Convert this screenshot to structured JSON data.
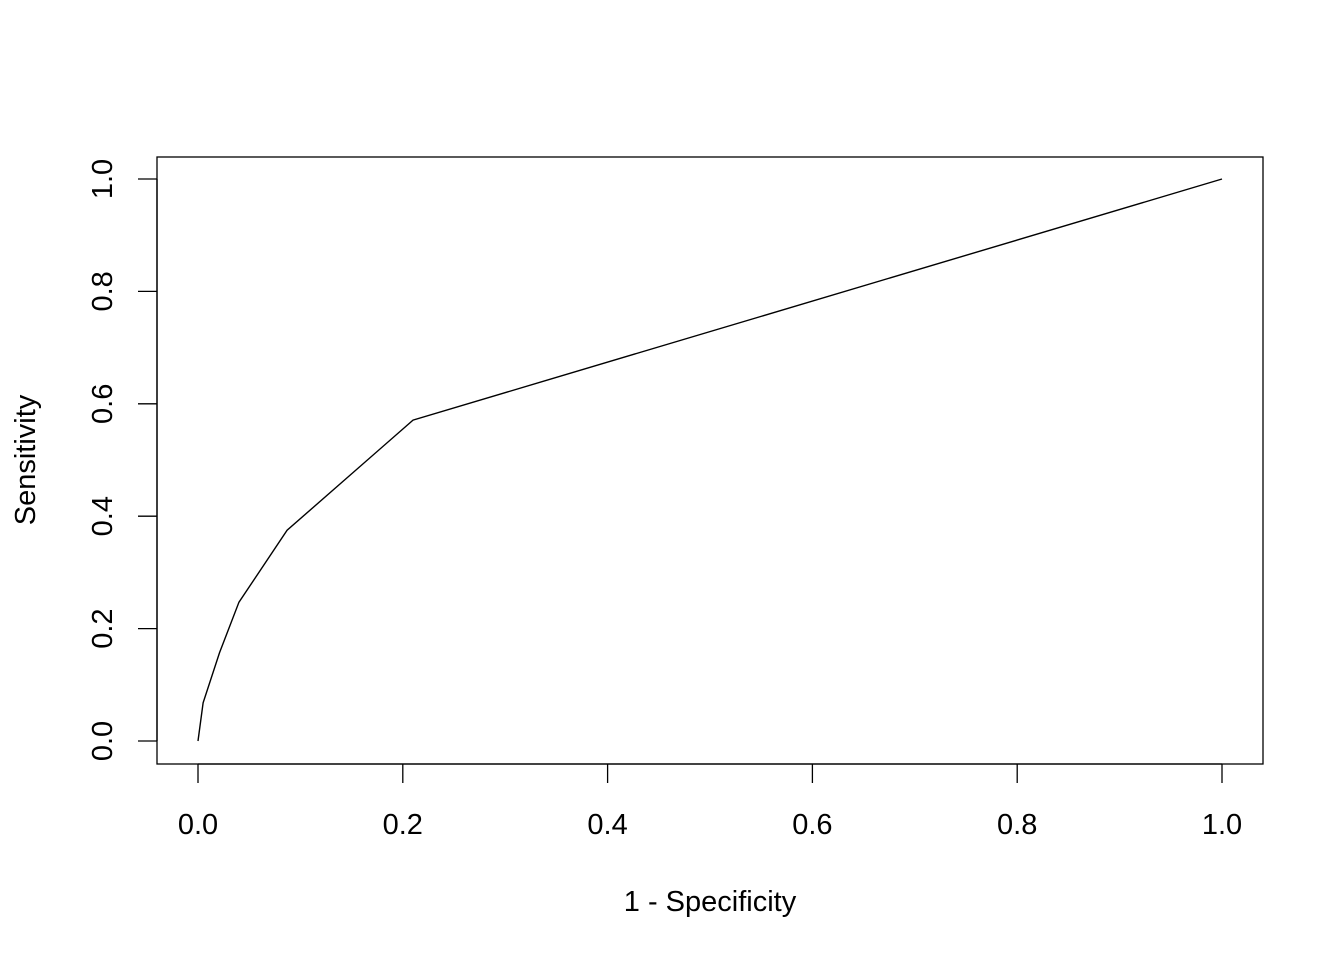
{
  "chart_data": {
    "type": "line",
    "title": "",
    "xlabel": "1 - Specificity",
    "ylabel": "Sensitivity",
    "xlim": [
      0,
      1
    ],
    "ylim": [
      0,
      1
    ],
    "grid": false,
    "xticks": [
      "0.0",
      "0.2",
      "0.4",
      "0.6",
      "0.8",
      "1.0"
    ],
    "yticks": [
      "0.0",
      "0.2",
      "0.4",
      "0.6",
      "0.8",
      "1.0"
    ],
    "series": [
      {
        "color": "#000000",
        "x": [
          0,
          0.005,
          0.021,
          0.04,
          0.087,
          0.21,
          1.0
        ],
        "y": [
          0,
          0.068,
          0.157,
          0.247,
          0.375,
          0.571,
          1.0
        ]
      }
    ]
  }
}
